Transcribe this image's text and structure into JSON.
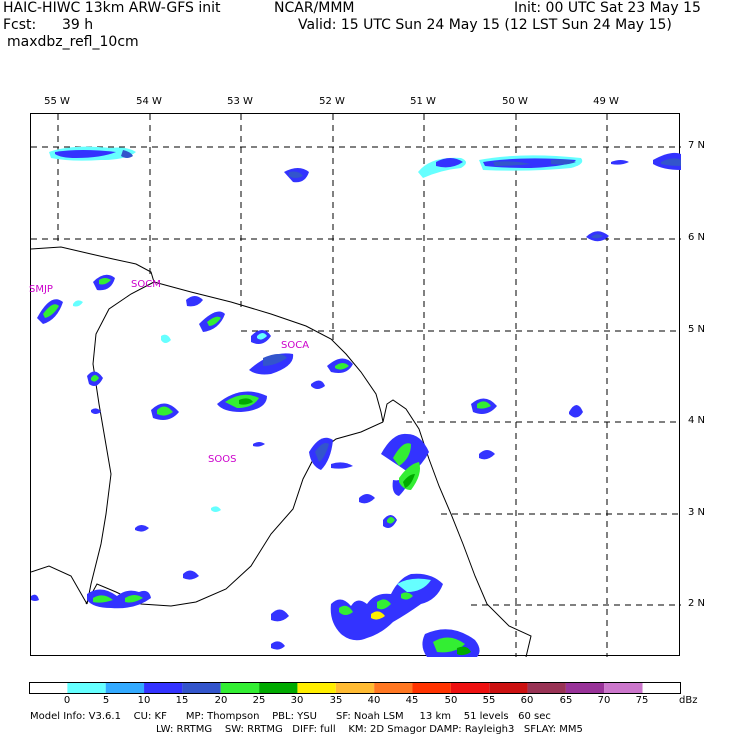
{
  "header": {
    "model_title": "HAIC-HIWC 13km ARW-GFS init",
    "org": "NCAR/MMM",
    "init": "Init: 00 UTC Sat 23 May 15",
    "fcst_label": "Fcst:",
    "fcst_value": "39 h",
    "valid": "Valid: 15 UTC Sun 24 May 15 (12 LST Sun 24 May 15)",
    "field": "maxdbz_refl_10cm"
  },
  "longitude_labels": [
    "55 W",
    "54 W",
    "53 W",
    "52 W",
    "51 W",
    "50 W",
    "49 W"
  ],
  "latitude_labels": [
    "7 N",
    "6 N",
    "5 N",
    "4 N",
    "3 N",
    "2 N"
  ],
  "station_labels": [
    "SMJP",
    "SOCM",
    "SOCA",
    "SOOS"
  ],
  "colorbar": {
    "unit": "dBz",
    "ticks": [
      "0",
      "5",
      "10",
      "15",
      "20",
      "25",
      "30",
      "35",
      "40",
      "45",
      "50",
      "55",
      "60",
      "65",
      "70",
      "75"
    ],
    "colors": [
      "#ffffff",
      "#66ffff",
      "#33aaff",
      "#3333ff",
      "#3355cc",
      "#33ee33",
      "#00aa00",
      "#ffee00",
      "#ffbb33",
      "#ff7722",
      "#ff3300",
      "#ee1111",
      "#cc1111",
      "#993355",
      "#993399",
      "#cc77cc"
    ]
  },
  "model_info": {
    "line1": "Model Info: V3.6.1    CU: KF      MP: Thompson    PBL: YSU      SF: Noah LSM     13 km    51 levels   60 sec",
    "line2": "LW: RRTMG    SW: RRTMG   DIFF: full    KM: 2D Smagor DAMP: Rayleigh3   SFLAY: MM5"
  },
  "colors": {
    "grid": "#000000",
    "coast": "#000000",
    "station": "#cc00cc"
  }
}
